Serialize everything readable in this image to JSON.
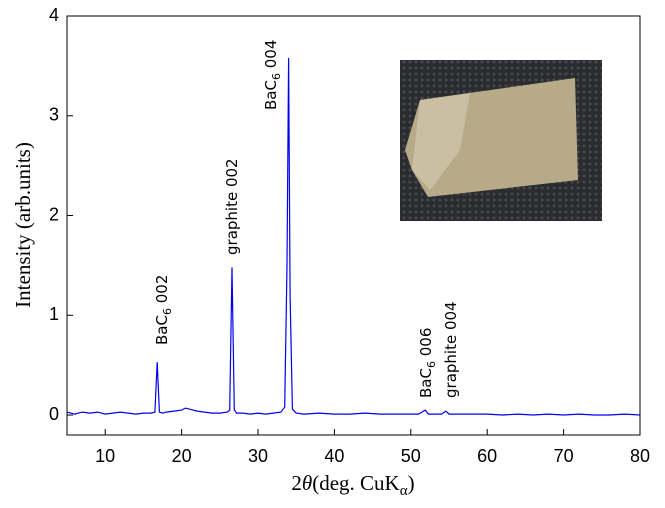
{
  "chart_data": {
    "type": "line",
    "ylabel": "Intensity (arb.units)",
    "xlabel": [
      "2",
      "θ",
      "(deg. CuK",
      "α",
      ")"
    ],
    "xlim": [
      5,
      80
    ],
    "xticks": [
      10,
      20,
      30,
      40,
      50,
      60,
      70,
      80
    ],
    "ylim": [
      -0.2,
      4
    ],
    "yticks": [
      0,
      1,
      2,
      3,
      4
    ],
    "annotations": [
      [
        "BaC",
        "6",
        " 002"
      ],
      [
        "graphite 002"
      ],
      [
        "BaC",
        "6",
        " 004"
      ],
      [
        "BaC",
        "6",
        " 006"
      ],
      [
        "graphite 004"
      ]
    ],
    "series": [
      {
        "color": "#0000ee",
        "x": [
          5,
          6,
          7,
          8,
          9,
          10,
          11,
          12,
          13,
          14,
          15,
          16,
          16.5,
          16.8,
          17.1,
          17.5,
          18,
          19,
          20,
          20.5,
          21,
          21.5,
          22,
          23,
          24,
          25,
          26,
          26.3,
          26.6,
          26.9,
          27.2,
          28,
          29,
          30,
          31,
          32,
          33,
          33.5,
          33.8,
          34,
          34.2,
          34.5,
          35,
          36,
          38,
          40,
          42,
          44,
          46,
          48,
          50,
          51,
          51.9,
          52.3,
          53,
          54,
          54.6,
          55,
          56,
          58,
          60,
          62,
          64,
          66,
          68,
          70,
          72,
          74,
          76,
          78,
          80
        ],
        "values": [
          0.03,
          0.01,
          0.03,
          0.02,
          0.03,
          0.01,
          0.02,
          0.03,
          0.02,
          0.01,
          0.02,
          0.02,
          0.03,
          0.53,
          0.03,
          0.02,
          0.03,
          0.04,
          0.05,
          0.07,
          0.06,
          0.05,
          0.04,
          0.03,
          0.02,
          0.02,
          0.03,
          0.05,
          1.48,
          0.05,
          0.02,
          0.02,
          0.01,
          0.02,
          0.01,
          0.02,
          0.03,
          0.08,
          1.5,
          3.58,
          1.2,
          0.06,
          0.02,
          0.01,
          0.02,
          0.01,
          0.01,
          0.02,
          0.01,
          0.01,
          0.01,
          0.01,
          0.05,
          0.01,
          0.01,
          0.01,
          0.04,
          0.01,
          0.01,
          0.01,
          0.01,
          0,
          0.01,
          0,
          0.01,
          0,
          0.01,
          0,
          0,
          0.01,
          0
        ]
      }
    ]
  }
}
